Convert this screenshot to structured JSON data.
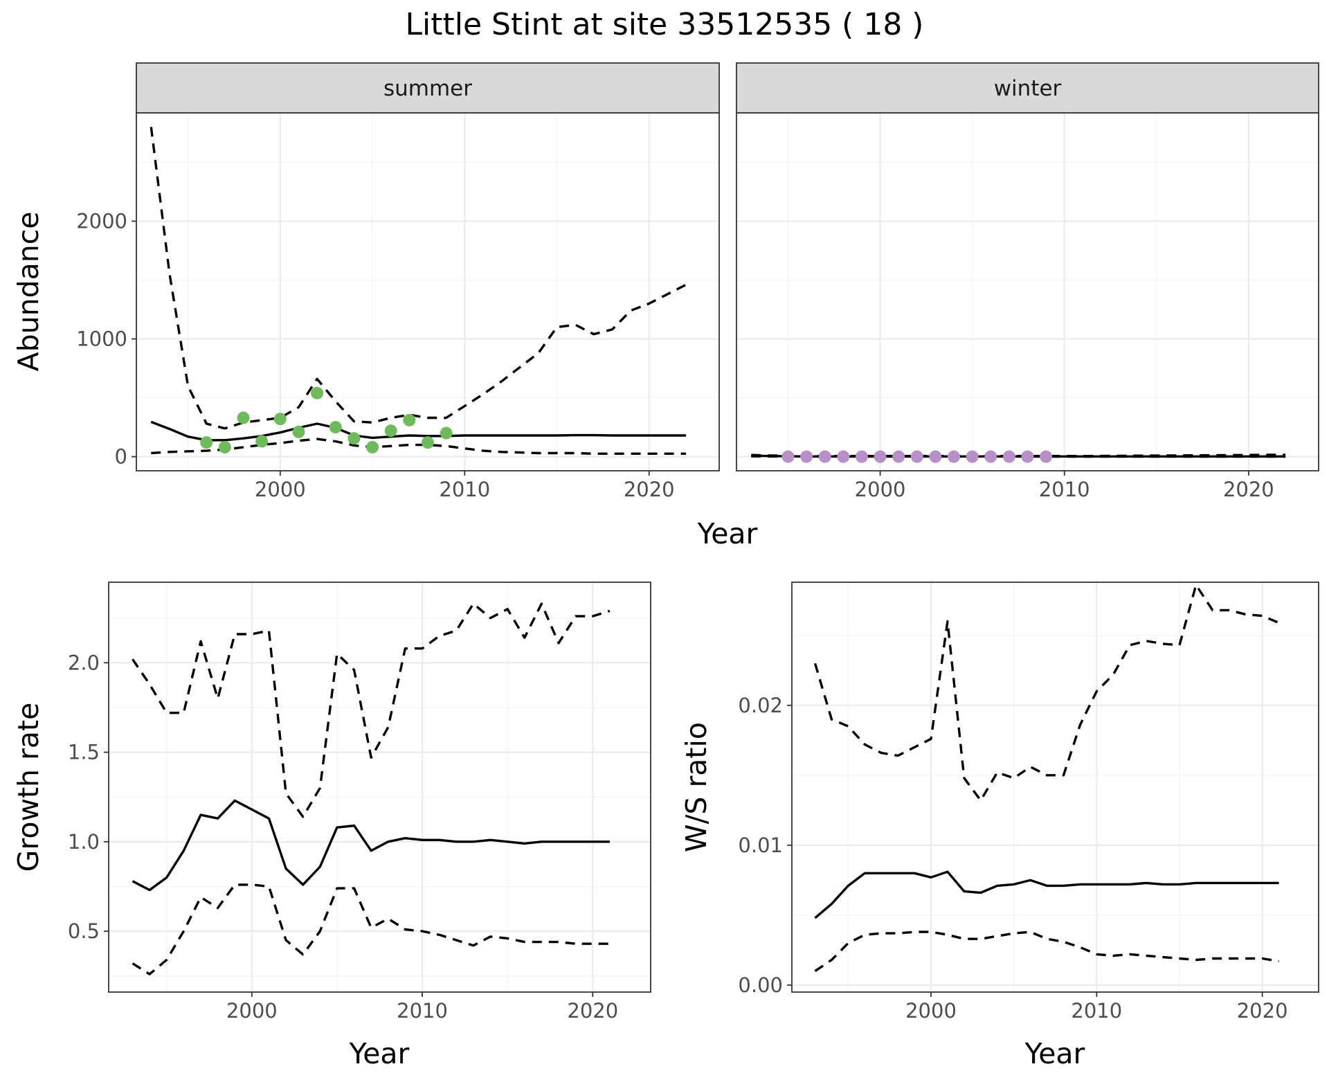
{
  "title": "Little Stint at site 33512535 ( 18 )",
  "colors": {
    "summer_points": "#6dbb5a",
    "winter_points": "#b88fc9",
    "line": "#000000",
    "strip": "#d9d9d9"
  },
  "chart_data": [
    {
      "type": "line",
      "facet": "summer",
      "xlabel": "Year",
      "ylabel": "Abundance",
      "xlim": [
        1992.2,
        2023.8
      ],
      "ylim": [
        -120,
        2920
      ],
      "xticks": [
        2000,
        2010,
        2020
      ],
      "yticks": [
        0,
        1000,
        2000
      ],
      "x": [
        1993,
        1994,
        1995,
        1996,
        1997,
        1998,
        1999,
        2000,
        2001,
        2002,
        2003,
        2004,
        2005,
        2006,
        2007,
        2008,
        2009,
        2010,
        2011,
        2012,
        2013,
        2014,
        2015,
        2016,
        2017,
        2018,
        2019,
        2020,
        2021,
        2022
      ],
      "series": [
        {
          "role": "estimate",
          "values": [
            295,
            235,
            170,
            140,
            140,
            155,
            175,
            205,
            245,
            280,
            245,
            180,
            160,
            170,
            180,
            175,
            175,
            180,
            180,
            180,
            180,
            180,
            180,
            182,
            182,
            180,
            180,
            180,
            180,
            180
          ]
        },
        {
          "role": "upper",
          "values": [
            2800,
            1550,
            600,
            280,
            240,
            290,
            310,
            330,
            420,
            660,
            470,
            300,
            290,
            330,
            355,
            330,
            330,
            430,
            530,
            640,
            760,
            880,
            1100,
            1120,
            1040,
            1080,
            1240,
            1300,
            1380,
            1460
          ]
        },
        {
          "role": "lower",
          "values": [
            30,
            40,
            45,
            50,
            60,
            80,
            100,
            115,
            135,
            150,
            130,
            95,
            80,
            90,
            100,
            100,
            90,
            70,
            50,
            40,
            35,
            30,
            30,
            30,
            25,
            25,
            25,
            25,
            25,
            25
          ]
        }
      ],
      "points": {
        "x": [
          1996,
          1997,
          1998,
          1999,
          2000,
          2001,
          2002,
          2003,
          2004,
          2005,
          2006,
          2007,
          2008,
          2009
        ],
        "y": [
          120,
          80,
          330,
          130,
          320,
          210,
          540,
          250,
          155,
          80,
          220,
          310,
          120,
          200
        ]
      }
    },
    {
      "type": "line",
      "facet": "winter",
      "xlabel": "Year",
      "ylabel": "Abundance",
      "xlim": [
        1992.2,
        2023.8
      ],
      "ylim": [
        -120,
        2920
      ],
      "xticks": [
        2000,
        2010,
        2020
      ],
      "yticks": [
        0,
        1000,
        2000
      ],
      "x": [
        1993,
        1994,
        1995,
        1996,
        1997,
        1998,
        1999,
        2000,
        2001,
        2002,
        2003,
        2004,
        2005,
        2006,
        2007,
        2008,
        2009,
        2010,
        2011,
        2012,
        2013,
        2014,
        2015,
        2016,
        2017,
        2018,
        2019,
        2020,
        2021,
        2022
      ],
      "series": [
        {
          "role": "estimate",
          "values": [
            8,
            5,
            3,
            2,
            2,
            2,
            2,
            2,
            2,
            2,
            2,
            2,
            2,
            2,
            2,
            2,
            2,
            2,
            2,
            2,
            2,
            2,
            2,
            2,
            2,
            2,
            2,
            2,
            2,
            2
          ]
        },
        {
          "role": "upper",
          "values": [
            14,
            10,
            7,
            5,
            5,
            5,
            5,
            5,
            5,
            5,
            5,
            5,
            5,
            5,
            5,
            5,
            5,
            5,
            5,
            6,
            7,
            8,
            9,
            10,
            11,
            12,
            13,
            14,
            15,
            16
          ]
        },
        {
          "role": "lower",
          "values": [
            3,
            2,
            1,
            1,
            1,
            1,
            1,
            1,
            1,
            1,
            1,
            1,
            1,
            1,
            1,
            1,
            1,
            0,
            0,
            0,
            0,
            0,
            0,
            0,
            0,
            0,
            0,
            0,
            0,
            0
          ]
        }
      ],
      "points": {
        "x": [
          1995,
          1996,
          1997,
          1998,
          1999,
          2000,
          2001,
          2002,
          2003,
          2004,
          2005,
          2006,
          2007,
          2008,
          2009
        ],
        "y": [
          0,
          0,
          0,
          0,
          0,
          0,
          0,
          0,
          0,
          0,
          0,
          0,
          0,
          0,
          0
        ]
      }
    },
    {
      "type": "line",
      "xlabel": "Year",
      "ylabel": "Growth rate",
      "xlim": [
        1991.6,
        2023.4
      ],
      "ylim": [
        0.16,
        2.45
      ],
      "xticks": [
        2000,
        2010,
        2020
      ],
      "yticks": [
        0.5,
        1.0,
        1.5,
        2.0
      ],
      "x": [
        1993,
        1994,
        1995,
        1996,
        1997,
        1998,
        1999,
        2000,
        2001,
        2002,
        2003,
        2004,
        2005,
        2006,
        2007,
        2008,
        2009,
        2010,
        2011,
        2012,
        2013,
        2014,
        2015,
        2016,
        2017,
        2018,
        2019,
        2020,
        2021
      ],
      "series": [
        {
          "role": "estimate",
          "values": [
            0.78,
            0.73,
            0.8,
            0.95,
            1.15,
            1.13,
            1.23,
            1.18,
            1.13,
            0.85,
            0.76,
            0.86,
            1.08,
            1.09,
            0.95,
            1.0,
            1.02,
            1.01,
            1.01,
            1.0,
            1.0,
            1.01,
            1.0,
            0.99,
            1.0,
            1.0,
            1.0,
            1.0,
            1.0
          ]
        },
        {
          "role": "upper",
          "values": [
            2.02,
            1.88,
            1.72,
            1.72,
            2.12,
            1.8,
            2.16,
            2.16,
            2.18,
            1.27,
            1.14,
            1.3,
            2.05,
            1.96,
            1.47,
            1.64,
            2.08,
            2.08,
            2.15,
            2.18,
            2.33,
            2.25,
            2.3,
            2.14,
            2.33,
            2.11,
            2.26,
            2.26,
            2.29
          ]
        },
        {
          "role": "lower",
          "values": [
            0.32,
            0.26,
            0.34,
            0.5,
            0.69,
            0.63,
            0.76,
            0.76,
            0.75,
            0.45,
            0.37,
            0.5,
            0.74,
            0.74,
            0.52,
            0.57,
            0.51,
            0.5,
            0.48,
            0.45,
            0.42,
            0.47,
            0.46,
            0.44,
            0.44,
            0.44,
            0.43,
            0.43,
            0.43
          ]
        }
      ]
    },
    {
      "type": "line",
      "xlabel": "Year",
      "ylabel": "W/S ratio",
      "xlim": [
        1991.6,
        2023.4
      ],
      "ylim": [
        -0.0005,
        0.0288
      ],
      "xticks": [
        2000,
        2010,
        2020
      ],
      "yticks": [
        0.0,
        0.01,
        0.02
      ],
      "ytick_labels": [
        "0.00",
        "0.01",
        "0.02"
      ],
      "x": [
        1993,
        1994,
        1995,
        1996,
        1997,
        1998,
        1999,
        2000,
        2001,
        2002,
        2003,
        2004,
        2005,
        2006,
        2007,
        2008,
        2009,
        2010,
        2011,
        2012,
        2013,
        2014,
        2015,
        2016,
        2017,
        2018,
        2019,
        2020,
        2021
      ],
      "series": [
        {
          "role": "estimate",
          "values": [
            0.0048,
            0.0058,
            0.0071,
            0.008,
            0.008,
            0.008,
            0.008,
            0.0077,
            0.0081,
            0.0067,
            0.0066,
            0.0071,
            0.0072,
            0.0075,
            0.0071,
            0.0071,
            0.0072,
            0.0072,
            0.0072,
            0.0072,
            0.0073,
            0.0072,
            0.0072,
            0.0073,
            0.0073,
            0.0073,
            0.0073,
            0.0073,
            0.0073
          ]
        },
        {
          "role": "upper",
          "values": [
            0.023,
            0.019,
            0.0185,
            0.0172,
            0.0166,
            0.0164,
            0.017,
            0.0176,
            0.026,
            0.0148,
            0.0132,
            0.0152,
            0.0148,
            0.0156,
            0.015,
            0.015,
            0.0186,
            0.021,
            0.0222,
            0.0243,
            0.0246,
            0.0244,
            0.0243,
            0.0286,
            0.0268,
            0.0268,
            0.0265,
            0.0264,
            0.0259
          ]
        },
        {
          "role": "lower",
          "values": [
            0.001,
            0.0018,
            0.003,
            0.0036,
            0.0037,
            0.0037,
            0.0038,
            0.0038,
            0.0036,
            0.0033,
            0.0033,
            0.0035,
            0.0037,
            0.0038,
            0.0033,
            0.0031,
            0.0027,
            0.0022,
            0.0021,
            0.0022,
            0.0021,
            0.002,
            0.0019,
            0.0018,
            0.0019,
            0.0019,
            0.0019,
            0.0019,
            0.0017
          ]
        }
      ]
    }
  ]
}
